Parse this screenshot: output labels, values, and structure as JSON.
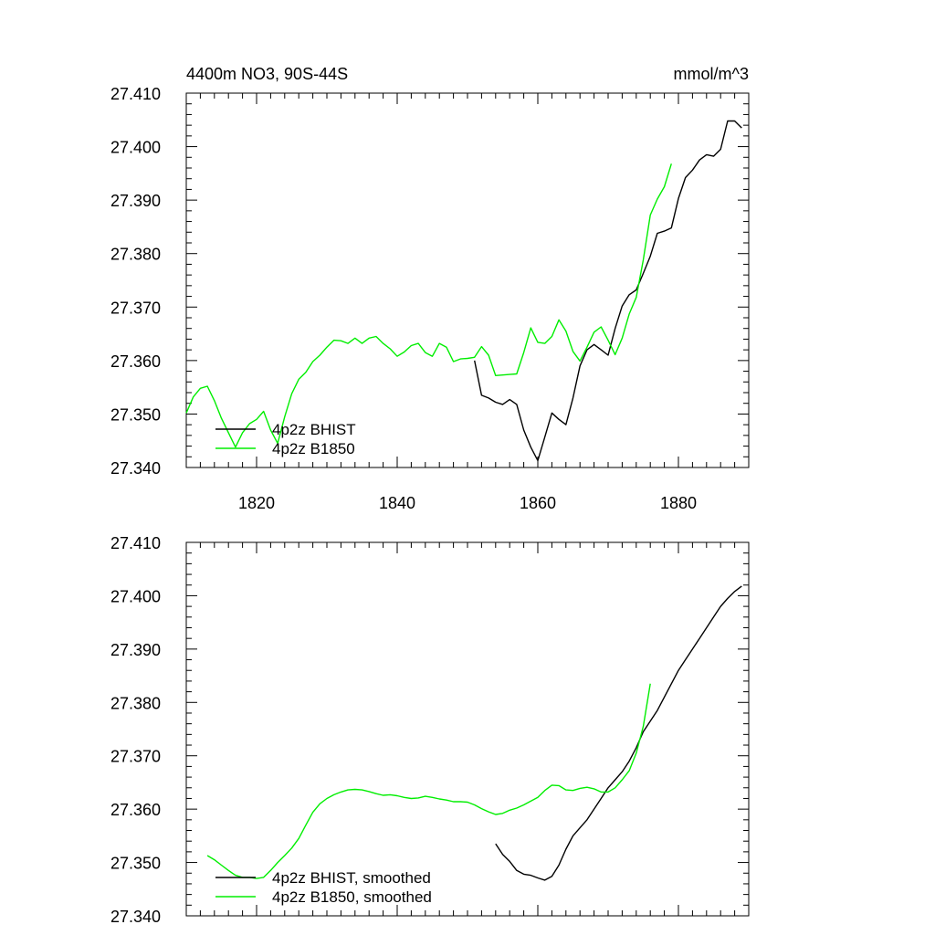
{
  "colors": {
    "bhist": "#000000",
    "b1850": "#00ee00"
  },
  "chart_data": [
    {
      "type": "line",
      "title_left": "4400m NO3, 90S-44S",
      "title_right": "mmol/m^3",
      "xlim": [
        1810,
        1890
      ],
      "ylim": [
        27.34,
        27.41
      ],
      "x_ticks": [
        1820,
        1840,
        1860,
        1880
      ],
      "x_ticklabels": [
        "1820",
        "1840",
        "1860",
        "1880"
      ],
      "y_ticks": [
        27.34,
        27.35,
        27.36,
        27.37,
        27.38,
        27.39,
        27.4,
        27.41
      ],
      "y_ticklabels": [
        "27.340",
        "27.350",
        "27.360",
        "27.370",
        "27.380",
        "27.390",
        "27.400",
        "27.410"
      ],
      "legend_position": "bottom-left",
      "series": [
        {
          "name": "4p2z BHIST",
          "color": "#000000",
          "x": [
            1851,
            1852,
            1853,
            1854,
            1855,
            1856,
            1857,
            1858,
            1859,
            1860,
            1861,
            1862,
            1863,
            1864,
            1865,
            1866,
            1867,
            1868,
            1869,
            1870,
            1871,
            1872,
            1873,
            1874,
            1875,
            1876,
            1877,
            1878,
            1879,
            1880,
            1881,
            1882,
            1883,
            1884,
            1885,
            1886,
            1887,
            1888,
            1889
          ],
          "y": [
            27.36,
            27.3535,
            27.353,
            27.3522,
            27.3518,
            27.3527,
            27.3518,
            27.347,
            27.3438,
            27.3413,
            27.3457,
            27.3502,
            27.349,
            27.348,
            27.353,
            27.359,
            27.362,
            27.363,
            27.362,
            27.361,
            27.366,
            27.3702,
            27.3723,
            27.3732,
            27.3763,
            27.3795,
            27.3838,
            27.3842,
            27.3848,
            27.3903,
            27.3942,
            27.3956,
            27.3975,
            27.3985,
            27.3982,
            27.3995,
            27.4048,
            27.4048,
            27.4035
          ]
        },
        {
          "name": "4p2z B1850",
          "color": "#00ee00",
          "x": [
            1810,
            1811,
            1812,
            1813,
            1814,
            1815,
            1816,
            1817,
            1818,
            1819,
            1820,
            1821,
            1822,
            1823,
            1824,
            1825,
            1826,
            1827,
            1828,
            1829,
            1830,
            1831,
            1832,
            1833,
            1834,
            1835,
            1836,
            1837,
            1838,
            1839,
            1840,
            1841,
            1842,
            1843,
            1844,
            1845,
            1846,
            1847,
            1848,
            1849,
            1850,
            1851,
            1852,
            1853,
            1854,
            1855,
            1856,
            1857,
            1858,
            1859,
            1860,
            1861,
            1862,
            1863,
            1864,
            1865,
            1866,
            1867,
            1868,
            1869,
            1870,
            1871,
            1872,
            1873,
            1874,
            1875,
            1876,
            1877,
            1878,
            1879
          ],
          "y": [
            27.3502,
            27.3532,
            27.3548,
            27.3552,
            27.3525,
            27.3492,
            27.3465,
            27.3438,
            27.3465,
            27.3482,
            27.349,
            27.3505,
            27.347,
            27.3445,
            27.3495,
            27.3538,
            27.3565,
            27.3578,
            27.3598,
            27.361,
            27.3625,
            27.3638,
            27.3637,
            27.3632,
            27.3642,
            27.3632,
            27.3642,
            27.3645,
            27.3632,
            27.3622,
            27.3608,
            27.3616,
            27.3628,
            27.3632,
            27.3615,
            27.3608,
            27.3632,
            27.3625,
            27.3598,
            27.3603,
            27.3604,
            27.3606,
            27.3626,
            27.361,
            27.3572,
            27.3573,
            27.3574,
            27.3575,
            27.3615,
            27.3661,
            27.3634,
            27.3632,
            27.3645,
            27.3676,
            27.3655,
            27.3617,
            27.3599,
            27.3625,
            27.3653,
            27.3663,
            27.3638,
            27.3611,
            27.3642,
            27.3687,
            27.3718,
            27.3788,
            27.3872,
            27.3902,
            27.3925,
            27.3968
          ]
        }
      ]
    },
    {
      "type": "line",
      "xlim": [
        1810,
        1890
      ],
      "ylim": [
        27.34,
        27.41
      ],
      "x_ticks": [
        1820,
        1840,
        1860,
        1880
      ],
      "y_ticks": [
        27.34,
        27.35,
        27.36,
        27.37,
        27.38,
        27.39,
        27.4,
        27.41
      ],
      "y_ticklabels": [
        "27.340",
        "27.350",
        "27.360",
        "27.370",
        "27.380",
        "27.390",
        "27.400",
        "27.410"
      ],
      "legend_position": "bottom-left",
      "series": [
        {
          "name": "4p2z BHIST, smoothed",
          "color": "#000000",
          "x": [
            1854,
            1855,
            1856,
            1857,
            1858,
            1859,
            1860,
            1861,
            1862,
            1863,
            1864,
            1865,
            1866,
            1867,
            1868,
            1869,
            1870,
            1871,
            1872,
            1873,
            1874,
            1875,
            1876,
            1877,
            1878,
            1879,
            1880,
            1881,
            1882,
            1883,
            1884,
            1885,
            1886,
            1887,
            1888,
            1889
          ],
          "y": [
            27.3535,
            27.3515,
            27.3502,
            27.3485,
            27.3478,
            27.3476,
            27.3471,
            27.3467,
            27.3474,
            27.3495,
            27.3525,
            27.355,
            27.3565,
            27.358,
            27.36,
            27.362,
            27.364,
            27.3655,
            27.367,
            27.369,
            27.3715,
            27.3745,
            27.3765,
            27.3785,
            27.381,
            27.3835,
            27.386,
            27.388,
            27.39,
            27.392,
            27.394,
            27.396,
            27.398,
            27.3995,
            27.4008,
            27.4018
          ]
        },
        {
          "name": "4p2z B1850, smoothed",
          "color": "#00ee00",
          "x": [
            1813,
            1814,
            1815,
            1816,
            1817,
            1818,
            1819,
            1820,
            1821,
            1822,
            1823,
            1824,
            1825,
            1826,
            1827,
            1828,
            1829,
            1830,
            1831,
            1832,
            1833,
            1834,
            1835,
            1836,
            1837,
            1838,
            1839,
            1840,
            1841,
            1842,
            1843,
            1844,
            1845,
            1846,
            1847,
            1848,
            1849,
            1850,
            1851,
            1852,
            1853,
            1854,
            1855,
            1856,
            1857,
            1858,
            1859,
            1860,
            1861,
            1862,
            1863,
            1864,
            1865,
            1866,
            1867,
            1868,
            1869,
            1870,
            1871,
            1872,
            1873,
            1874,
            1875,
            1876
          ],
          "y": [
            27.3513,
            27.3505,
            27.3495,
            27.3485,
            27.3476,
            27.3472,
            27.3472,
            27.347,
            27.3472,
            27.3485,
            27.35,
            27.3513,
            27.3527,
            27.3545,
            27.357,
            27.3594,
            27.361,
            27.362,
            27.3627,
            27.3632,
            27.3636,
            27.3637,
            27.3636,
            27.3633,
            27.3629,
            27.3626,
            27.3627,
            27.3625,
            27.3622,
            27.362,
            27.3621,
            27.3624,
            27.3622,
            27.3619,
            27.3617,
            27.3614,
            27.3614,
            27.3613,
            27.3608,
            27.3601,
            27.3595,
            27.359,
            27.3592,
            27.3598,
            27.3602,
            27.3608,
            27.3615,
            27.3622,
            27.3635,
            27.3645,
            27.3644,
            27.3636,
            27.3635,
            27.3639,
            27.3641,
            27.3638,
            27.3632,
            27.3632,
            27.364,
            27.3655,
            27.3672,
            27.3705,
            27.3755,
            27.3835
          ]
        }
      ]
    }
  ]
}
